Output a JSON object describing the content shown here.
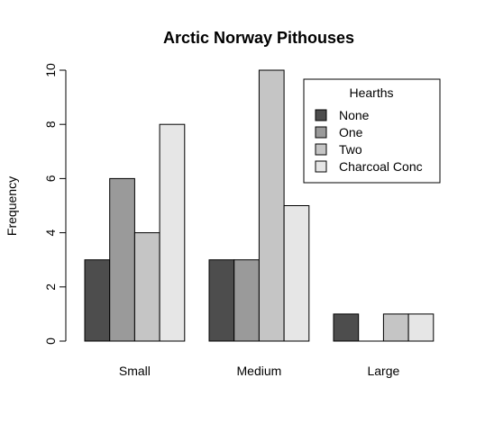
{
  "chart_data": {
    "type": "bar",
    "title": "Arctic Norway Pithouses",
    "xlabel": "",
    "ylabel": "Frequency",
    "categories": [
      "Small",
      "Medium",
      "Large"
    ],
    "ylim": [
      0,
      10
    ],
    "yticks": [
      0,
      2,
      4,
      6,
      8,
      10
    ],
    "series": [
      {
        "name": "None",
        "values": [
          3,
          3,
          1
        ],
        "color": "#4d4d4d"
      },
      {
        "name": "One",
        "values": [
          6,
          3,
          0
        ],
        "color": "#9a9a9a"
      },
      {
        "name": "Two",
        "values": [
          4,
          10,
          1
        ],
        "color": "#c5c5c5"
      },
      {
        "name": "Charcoal Conc",
        "values": [
          8,
          5,
          1
        ],
        "color": "#e6e6e6"
      }
    ],
    "legend": {
      "title": "Hearths",
      "position": "top-right"
    },
    "grid": false
  }
}
